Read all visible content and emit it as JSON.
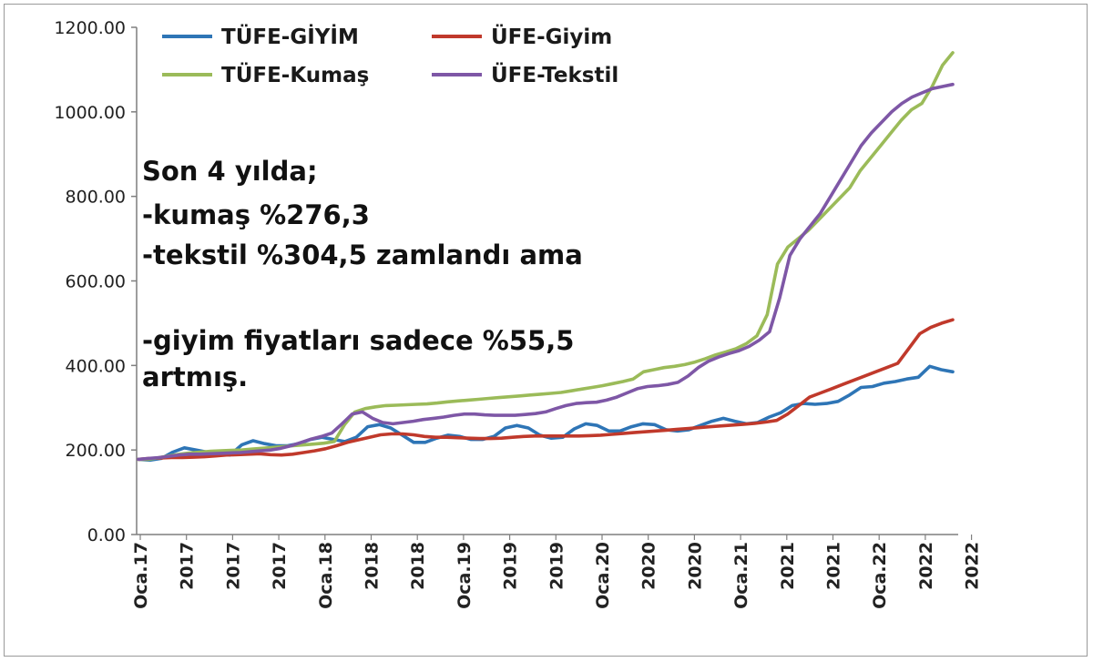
{
  "chart_data": {
    "type": "line",
    "ylim": [
      0,
      1200
    ],
    "grid": false,
    "legend_placement": "top",
    "y_ticks": [
      "0.00",
      "200.00",
      "400.00",
      "600.00",
      "800.00",
      "1000.00",
      "1200.00"
    ],
    "x_tick_labels": [
      "Oca.17",
      "2017",
      "2017",
      "2017",
      "Oca.18",
      "2018",
      "2018",
      "Oca.19",
      "2019",
      "2019",
      "Oca.20",
      "2020",
      "2020",
      "Oca.21",
      "2021",
      "2021",
      "Oca.22",
      "2022",
      "2022"
    ],
    "annotation": [
      "Son 4 yılda;",
      "-kumaş %276,3",
      "-tekstil %304,5 zamlandı ama",
      "",
      "-giyim fiyatları sadece %55,5",
      "artmış."
    ],
    "series": [
      {
        "name": "TÜFE-GİYİM",
        "color": "#2e75b6",
        "values": [
          178,
          176,
          180,
          195,
          205,
          200,
          195,
          190,
          188,
          212,
          222,
          215,
          210,
          210,
          215,
          225,
          230,
          225,
          220,
          230,
          255,
          260,
          252,
          235,
          218,
          218,
          228,
          235,
          232,
          225,
          225,
          232,
          252,
          258,
          252,
          235,
          228,
          230,
          250,
          262,
          258,
          245,
          245,
          255,
          262,
          260,
          248,
          245,
          248,
          258,
          268,
          275,
          268,
          262,
          265,
          278,
          288,
          305,
          310,
          308,
          310,
          315,
          330,
          348,
          350,
          358,
          362,
          368,
          372,
          398,
          390,
          385
        ]
      },
      {
        "name": "ÜFE-Giyim",
        "color": "#c0392b",
        "values": [
          178,
          180,
          181,
          182,
          182,
          183,
          184,
          186,
          188,
          189,
          190,
          191,
          189,
          188,
          190,
          194,
          198,
          203,
          210,
          218,
          224,
          230,
          236,
          238,
          238,
          236,
          232,
          230,
          230,
          229,
          228,
          227,
          227,
          228,
          230,
          232,
          233,
          233,
          233,
          233,
          233,
          234,
          235,
          237,
          239,
          241,
          243,
          245,
          247,
          249,
          251,
          253,
          255,
          257,
          259,
          261,
          263,
          266,
          270,
          285,
          305,
          325,
          335,
          345,
          355,
          365,
          375,
          385,
          395,
          405,
          440,
          475,
          490,
          500,
          508
        ]
      },
      {
        "name": "TÜFE-Kumaş",
        "color": "#9bbb59",
        "values": [
          178,
          178,
          182,
          186,
          190,
          193,
          195,
          197,
          198,
          199,
          200,
          202,
          204,
          206,
          208,
          210,
          212,
          214,
          216,
          220,
          260,
          290,
          298,
          302,
          305,
          306,
          307,
          308,
          309,
          311,
          314,
          316,
          318,
          320,
          322,
          324,
          326,
          328,
          330,
          332,
          334,
          336,
          340,
          344,
          348,
          352,
          357,
          362,
          368,
          385,
          390,
          395,
          398,
          402,
          408,
          416,
          425,
          432,
          440,
          452,
          470,
          520,
          640,
          680,
          700,
          720,
          745,
          770,
          795,
          820,
          860,
          890,
          920,
          950,
          980,
          1005,
          1020,
          1060,
          1110,
          1140
        ]
      },
      {
        "name": "ÜFE-Tekstil",
        "color": "#7e57a6",
        "values": [
          178,
          180,
          182,
          185,
          188,
          190,
          190,
          191,
          192,
          193,
          194,
          196,
          198,
          200,
          204,
          210,
          218,
          226,
          232,
          240,
          262,
          285,
          290,
          275,
          265,
          262,
          265,
          268,
          272,
          275,
          278,
          282,
          285,
          285,
          283,
          282,
          282,
          282,
          284,
          286,
          290,
          298,
          305,
          310,
          312,
          313,
          318,
          325,
          335,
          345,
          350,
          352,
          355,
          360,
          375,
          395,
          410,
          420,
          428,
          435,
          445,
          460,
          480,
          560,
          660,
          700,
          730,
          760,
          800,
          840,
          880,
          920,
          950,
          975,
          1000,
          1020,
          1035,
          1045,
          1055,
          1060,
          1065
        ]
      }
    ]
  },
  "legend": [
    {
      "label": "TÜFE-GİYİM",
      "color": "#2e75b6"
    },
    {
      "label": "ÜFE-Giyim",
      "color": "#c0392b"
    },
    {
      "label": "TÜFE-Kumaş",
      "color": "#9bbb59"
    },
    {
      "label": "ÜFE-Tekstil",
      "color": "#7e57a6"
    }
  ]
}
